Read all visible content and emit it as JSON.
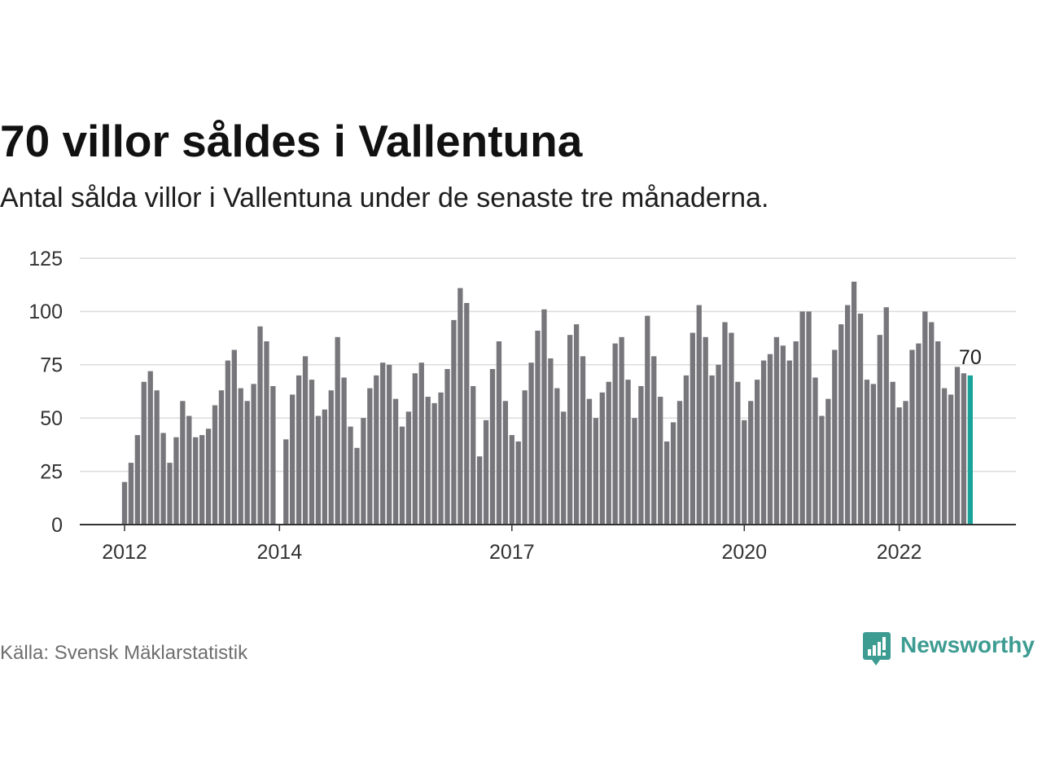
{
  "chart_data": {
    "type": "bar",
    "title": "70 villor såldes i Vallentuna",
    "subtitle": "Antal sålda villor i Vallentuna under de senaste tre månaderna.",
    "x": [
      "2012-01",
      "2012-02",
      "2012-03",
      "2012-04",
      "2012-05",
      "2012-06",
      "2012-07",
      "2012-08",
      "2012-09",
      "2012-10",
      "2012-11",
      "2012-12",
      "2013-01",
      "2013-02",
      "2013-03",
      "2013-04",
      "2013-05",
      "2013-06",
      "2013-07",
      "2013-08",
      "2013-09",
      "2013-10",
      "2013-11",
      "2013-12",
      "2014-01",
      "2014-02",
      "2014-03",
      "2014-04",
      "2014-05",
      "2014-06",
      "2014-07",
      "2014-08",
      "2014-09",
      "2014-10",
      "2014-11",
      "2014-12",
      "2015-01",
      "2015-02",
      "2015-03",
      "2015-04",
      "2015-05",
      "2015-06",
      "2015-07",
      "2015-08",
      "2015-09",
      "2015-10",
      "2015-11",
      "2015-12",
      "2016-01",
      "2016-02",
      "2016-03",
      "2016-04",
      "2016-05",
      "2016-06",
      "2016-07",
      "2016-08",
      "2016-09",
      "2016-10",
      "2016-11",
      "2016-12",
      "2017-01",
      "2017-02",
      "2017-03",
      "2017-04",
      "2017-05",
      "2017-06",
      "2017-07",
      "2017-08",
      "2017-09",
      "2017-10",
      "2017-11",
      "2017-12",
      "2018-01",
      "2018-02",
      "2018-03",
      "2018-04",
      "2018-05",
      "2018-06",
      "2018-07",
      "2018-08",
      "2018-09",
      "2018-10",
      "2018-11",
      "2018-12",
      "2019-01",
      "2019-02",
      "2019-03",
      "2019-04",
      "2019-05",
      "2019-06",
      "2019-07",
      "2019-08",
      "2019-09",
      "2019-10",
      "2019-11",
      "2019-12",
      "2020-01",
      "2020-02",
      "2020-03",
      "2020-04",
      "2020-05",
      "2020-06",
      "2020-07",
      "2020-08",
      "2020-09",
      "2020-10",
      "2020-11",
      "2020-12",
      "2021-01",
      "2021-02",
      "2021-03",
      "2021-04",
      "2021-05",
      "2021-06",
      "2021-07",
      "2021-08",
      "2021-09",
      "2021-10",
      "2021-11",
      "2021-12",
      "2022-01",
      "2022-02",
      "2022-03",
      "2022-04",
      "2022-05",
      "2022-06",
      "2022-07",
      "2022-08",
      "2022-09",
      "2022-10",
      "2022-11",
      "2022-12"
    ],
    "values": [
      20,
      29,
      42,
      67,
      72,
      63,
      43,
      29,
      41,
      58,
      51,
      41,
      42,
      45,
      56,
      63,
      77,
      82,
      64,
      58,
      66,
      93,
      86,
      65,
      null,
      40,
      61,
      70,
      79,
      68,
      51,
      54,
      63,
      88,
      69,
      46,
      36,
      50,
      64,
      70,
      76,
      75,
      59,
      46,
      53,
      71,
      76,
      60,
      57,
      62,
      73,
      96,
      111,
      104,
      65,
      32,
      49,
      73,
      86,
      58,
      42,
      39,
      63,
      76,
      91,
      101,
      78,
      64,
      53,
      89,
      94,
      79,
      59,
      50,
      62,
      67,
      85,
      88,
      68,
      50,
      65,
      98,
      79,
      60,
      39,
      48,
      58,
      70,
      90,
      103,
      88,
      70,
      75,
      95,
      90,
      67,
      49,
      58,
      68,
      77,
      80,
      88,
      84,
      77,
      86,
      100,
      100,
      69,
      51,
      59,
      82,
      94,
      103,
      114,
      99,
      68,
      66,
      89,
      102,
      67,
      55,
      58,
      82,
      85,
      100,
      95,
      86,
      64,
      61,
      74,
      71,
      70
    ],
    "ylim": [
      0,
      125
    ],
    "y_ticks": [
      0,
      25,
      50,
      75,
      100,
      125
    ],
    "x_ticks": [
      "2012",
      "2014",
      "2017",
      "2020",
      "2022"
    ],
    "annotations": [
      {
        "x": "2022-12",
        "text": "70"
      }
    ],
    "grid": true,
    "colors": {
      "bar": "#77767b",
      "highlight": "#1aa39b",
      "grid": "#dcdcdc",
      "axis": "#333333"
    }
  },
  "source": "Källa: Svensk Mäklarstatistik",
  "brand": {
    "name": "Newsworthy",
    "icon": "newsworthy-logo-icon",
    "color": "#3d9c92"
  }
}
